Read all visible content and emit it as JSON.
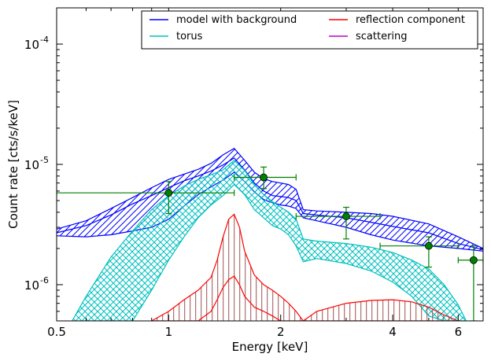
{
  "chart_data": {
    "type": "line",
    "title": "",
    "xlabel": "Energy [keV]",
    "ylabel": "Count rate [cts/s/keV]",
    "x_scale": "log",
    "y_scale": "log",
    "xlim": [
      0.5,
      7.0
    ],
    "ylim": [
      5e-07,
      0.0002
    ],
    "x_ticks": [
      {
        "value": 0.5,
        "label": "0.5"
      },
      {
        "value": 1,
        "label": "1"
      },
      {
        "value": 2,
        "label": "2"
      },
      {
        "value": 4,
        "label": "4"
      },
      {
        "value": 6,
        "label": "6"
      }
    ],
    "y_ticks": [
      {
        "value": 1e-06,
        "base": "10",
        "exp": "-6"
      },
      {
        "value": 1e-05,
        "base": "10",
        "exp": "-5"
      },
      {
        "value": 0.0001,
        "base": "10",
        "exp": "-4"
      }
    ],
    "grid": false,
    "legend": {
      "placement": "top-right",
      "entries": [
        {
          "label": "model with background",
          "color": "#0000ff"
        },
        {
          "label": "torus",
          "color": "#00bfbf"
        },
        {
          "label": "reflection component",
          "color": "#ff0000"
        },
        {
          "label": "scattering",
          "color": "#bf00bf"
        }
      ]
    },
    "series": [
      {
        "name": "model with background",
        "color": "#0000ff",
        "hatch": "diagonal",
        "x": [
          0.5,
          0.6,
          0.7,
          0.8,
          0.9,
          1.0,
          1.1,
          1.2,
          1.3,
          1.4,
          1.5,
          1.6,
          1.7,
          1.8,
          1.9,
          2.0,
          2.1,
          2.2,
          2.3,
          2.5,
          3.0,
          3.5,
          4.0,
          5.0,
          6.0,
          7.0
        ],
        "upper": [
          2.9e-06,
          3.4e-06,
          4.3e-06,
          5.3e-06,
          6.4e-06,
          7.5e-06,
          8.3e-06,
          9.1e-06,
          1.02e-05,
          1.2e-05,
          1.36e-05,
          1.08e-05,
          8.6e-06,
          7.6e-06,
          7.2e-06,
          7e-06,
          6.8e-06,
          6.2e-06,
          4.2e-06,
          4.1e-06,
          4e-06,
          3.9e-06,
          3.7e-06,
          3.2e-06,
          2.5e-06,
          2e-06
        ],
        "mid": [
          2.7e-06,
          3.1e-06,
          3.8e-06,
          4.7e-06,
          5.5e-06,
          6.4e-06,
          7.3e-06,
          8e-06,
          8.8e-06,
          9.9e-06,
          1.13e-05,
          9e-06,
          7e-06,
          6e-06,
          5.5e-06,
          5.4e-06,
          5.3e-06,
          5e-06,
          3.9e-06,
          3.8e-06,
          3.6e-06,
          3.3e-06,
          3.05e-06,
          2.7e-06,
          2.2e-06,
          1.95e-06
        ],
        "lower": [
          2.55e-06,
          2.5e-06,
          2.6e-06,
          2.8e-06,
          3e-06,
          3.5e-06,
          4.5e-06,
          5.6e-06,
          6.5e-06,
          7.4e-06,
          8.6e-06,
          7.2e-06,
          5.9e-06,
          5.1e-06,
          4.8e-06,
          4.6e-06,
          4.5e-06,
          4.3e-06,
          3.6e-06,
          3.4e-06,
          3e-06,
          2.6e-06,
          2.35e-06,
          2.1e-06,
          2e-06,
          1.9e-06
        ]
      },
      {
        "name": "torus",
        "color": "#00bfbf",
        "hatch": "crosshatch",
        "x": [
          0.55,
          0.6,
          0.7,
          0.8,
          0.9,
          1.0,
          1.1,
          1.2,
          1.3,
          1.4,
          1.5,
          1.6,
          1.7,
          1.8,
          1.9,
          2.0,
          2.1,
          2.2,
          2.3,
          2.5,
          3.0,
          3.5,
          4.0,
          4.5,
          5.0,
          5.5,
          6.0,
          6.3
        ],
        "upper": [
          5e-07,
          8e-07,
          1.7e-06,
          2.8e-06,
          4.2e-06,
          5.5e-06,
          6.6e-06,
          7.5e-06,
          8.2e-06,
          9e-06,
          1.08e-05,
          8.9e-06,
          6.8e-06,
          5.6e-06,
          4.9e-06,
          4.4e-06,
          4e-06,
          3.5e-06,
          2.4e-06,
          2.3e-06,
          2.2e-06,
          2.05e-06,
          1.85e-06,
          1.6e-06,
          1.35e-06,
          1e-06,
          6.8e-07,
          5e-07
        ],
        "lower": [
          null,
          null,
          null,
          5e-07,
          9e-07,
          1.6e-06,
          2.5e-06,
          3.6e-06,
          4.6e-06,
          5.5e-06,
          6.8e-06,
          5.6e-06,
          4.2e-06,
          3.6e-06,
          3.1e-06,
          2.9e-06,
          2.6e-06,
          2.1e-06,
          1.55e-06,
          1.65e-06,
          1.5e-06,
          1.3e-06,
          1.05e-06,
          8e-07,
          5.5e-07,
          null,
          null,
          null
        ]
      },
      {
        "name": "reflection component",
        "color": "#ff0000",
        "x": [
          0.9,
          1.0,
          1.1,
          1.2,
          1.3,
          1.35,
          1.4,
          1.45,
          1.5,
          1.55,
          1.6,
          1.7,
          1.8,
          1.9,
          2.0,
          2.1,
          2.2,
          2.3,
          2.5,
          3.0,
          3.5,
          4.0,
          4.5,
          5.0,
          5.5,
          6.0
        ],
        "upper": [
          5e-07,
          6e-07,
          7.5e-07,
          9e-07,
          1.15e-06,
          1.6e-06,
          2.5e-06,
          3.5e-06,
          3.85e-06,
          3e-06,
          1.9e-06,
          1.2e-06,
          1e-06,
          9e-07,
          8e-07,
          7e-07,
          6e-07,
          5e-07,
          6e-07,
          7e-07,
          7.4e-07,
          7.5e-07,
          7.2e-07,
          6.5e-07,
          5.6e-07,
          5e-07
        ],
        "lower": [
          null,
          null,
          null,
          5e-07,
          6e-07,
          7.5e-07,
          9.5e-07,
          1.1e-06,
          1.18e-06,
          1e-06,
          8e-07,
          6.5e-07,
          6e-07,
          5.5e-07,
          5e-07,
          null,
          null,
          null,
          null,
          null,
          null,
          null,
          null,
          null,
          null,
          null
        ]
      }
    ],
    "data_points": [
      {
        "x": 1.0,
        "y": 5.8e-06,
        "xlo": 0.5,
        "xhi": 1.5,
        "ylo": 3.9e-06,
        "yhi": 7.2e-06
      },
      {
        "x": 1.8,
        "y": 7.8e-06,
        "xlo": 1.5,
        "xhi": 2.2,
        "ylo": 6.3e-06,
        "yhi": 9.5e-06
      },
      {
        "x": 3.0,
        "y": 3.7e-06,
        "xlo": 2.2,
        "xhi": 3.7,
        "ylo": 2.4e-06,
        "yhi": 4.4e-06
      },
      {
        "x": 5.0,
        "y": 2.1e-06,
        "xlo": 3.7,
        "xhi": 6.0,
        "ylo": 1.4e-06,
        "yhi": 2.5e-06
      },
      {
        "x": 6.6,
        "y": 1.6e-06,
        "xlo": 6.0,
        "xhi": 7.0,
        "ylo": 5e-07,
        "yhi": 2.1e-06
      }
    ],
    "data_point_color": "#008000"
  }
}
